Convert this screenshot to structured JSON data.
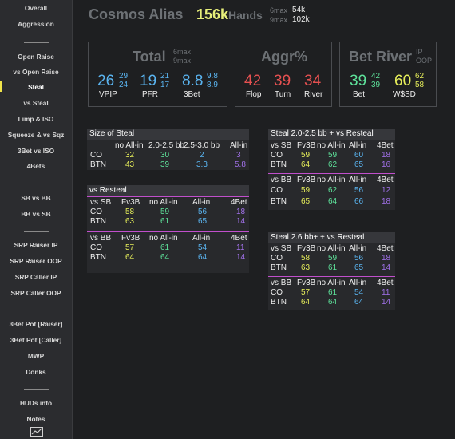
{
  "sidebar": {
    "items": [
      "Overall",
      "Aggression",
      "Open Raise",
      "vs Open Raise",
      "Steal",
      "vs Steal",
      "Limp & ISO",
      "Squeeze & vs Sqz",
      "3Bet vs ISO",
      "4Bets",
      "SB vs BB",
      "BB vs SB",
      "SRP Raiser IP",
      "SRP Raiser OOP",
      "SRP Caller IP",
      "SRP Caller OOP",
      "3Bet Pot [Raiser]",
      "3Bet Pot [Caller]",
      "MWP",
      "Donks",
      "HUDs info",
      "Notes"
    ],
    "active": "Steal",
    "chart_icon": "chart-icon"
  },
  "header": {
    "player": "Cosmos Alias",
    "hands_count": "156k",
    "hands_label": "Hands",
    "max6_label": "6max",
    "max6_value": "54k",
    "max9_label": "9max",
    "max9_value": "102k"
  },
  "total": {
    "title": "Total",
    "l6": "6max",
    "l9": "9max",
    "vpip": "26",
    "vpip6": "29",
    "vpip9": "24",
    "vpip_label": "VPIP",
    "pfr": "19",
    "pfr6": "21",
    "pfr9": "17",
    "pfr_label": "PFR",
    "tbet": "8.8",
    "tbet6": "9.8",
    "tbet9": "8.9",
    "tbet_label": "3Bet"
  },
  "aggr": {
    "title": "Aggr%",
    "flop": "42",
    "flop_label": "Flop",
    "turn": "39",
    "turn_label": "Turn",
    "river": "34",
    "river_label": "River"
  },
  "betriver": {
    "title": "Bet River",
    "ip": "IP",
    "oop": "OOP",
    "bet": "39",
    "bet_ip": "42",
    "bet_oop": "39",
    "bet_label": "Bet",
    "wsd": "60",
    "wsd_ip": "62",
    "wsd_oop": "58",
    "wsd_label": "W$SD"
  },
  "size_of_steal": {
    "title": "Size of Steal",
    "cols": [
      "no All-in",
      "2.0-2.5 bb",
      "2.5-3.0 bb",
      "All-in"
    ],
    "rows": [
      {
        "pos": "CO",
        "vals": [
          "32",
          "30",
          "2",
          "3"
        ]
      },
      {
        "pos": "BTN",
        "vals": [
          "43",
          "39",
          "3.3",
          "5.8"
        ]
      }
    ]
  },
  "vs_resteal": {
    "title": "vs Resteal",
    "sb_head": [
      "vs SB",
      "Fv3B",
      "no All-in",
      "All-in",
      "4Bet"
    ],
    "sb_rows": [
      {
        "pos": "CO",
        "vals": [
          "58",
          "59",
          "56",
          "18"
        ]
      },
      {
        "pos": "BTN",
        "vals": [
          "63",
          "61",
          "65",
          "14"
        ]
      }
    ],
    "bb_head": [
      "vs BB",
      "Fv3B",
      "no All-in",
      "All-in",
      "4Bet"
    ],
    "bb_rows": [
      {
        "pos": "CO",
        "vals": [
          "57",
          "61",
          "54",
          "11"
        ]
      },
      {
        "pos": "BTN",
        "vals": [
          "64",
          "64",
          "64",
          "14"
        ]
      }
    ]
  },
  "steal_20_25": {
    "title": "Steal 2.0-2.5 bb + vs Resteal",
    "sb_head": [
      "vs SB",
      "Fv3B",
      "no All-in",
      "All-in",
      "4Bet"
    ],
    "sb_rows": [
      {
        "pos": "CO",
        "vals": [
          "59",
          "59",
          "60",
          "18"
        ]
      },
      {
        "pos": "BTN",
        "vals": [
          "64",
          "62",
          "65",
          "16"
        ]
      }
    ],
    "bb_head": [
      "vs BB",
      "Fv3B",
      "no All-in",
      "All-in",
      "4Bet"
    ],
    "bb_rows": [
      {
        "pos": "CO",
        "vals": [
          "59",
          "62",
          "56",
          "12"
        ]
      },
      {
        "pos": "BTN",
        "vals": [
          "65",
          "64",
          "66",
          "18"
        ]
      }
    ]
  },
  "steal_26": {
    "title": "Steal 2.6 bb+ + vs Resteal",
    "sb_head": [
      "vs SB",
      "Fv3B",
      "no All-in",
      "All-in",
      "4Bet"
    ],
    "sb_rows": [
      {
        "pos": "CO",
        "vals": [
          "58",
          "59",
          "56",
          "18"
        ]
      },
      {
        "pos": "BTN",
        "vals": [
          "63",
          "61",
          "65",
          "14"
        ]
      }
    ],
    "bb_head": [
      "vs BB",
      "Fv3B",
      "no All-in",
      "All-in",
      "4Bet"
    ],
    "bb_rows": [
      {
        "pos": "CO",
        "vals": [
          "57",
          "61",
          "54",
          "11"
        ]
      },
      {
        "pos": "BTN",
        "vals": [
          "64",
          "64",
          "64",
          "14"
        ]
      }
    ]
  }
}
